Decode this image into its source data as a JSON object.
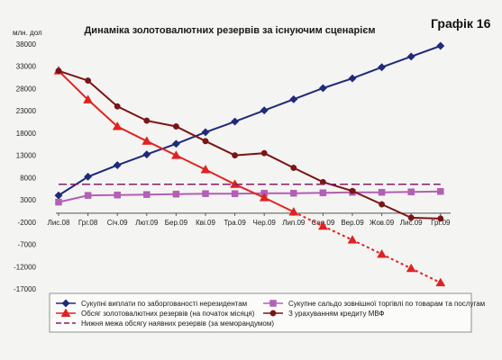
{
  "chart_data": {
    "type": "line",
    "title": "Динаміка золотовалютних резервів за існуючим сценарієм",
    "badge": "Графік 16",
    "ylabel": "млн. дол",
    "ylim": [
      -17000,
      38000
    ],
    "yticks": [
      -17000,
      -12000,
      -7000,
      -2000,
      3000,
      8000,
      13000,
      18000,
      23000,
      28000,
      33000,
      38000
    ],
    "ytick_labels": [
      "-17000",
      "-12000",
      "-7000",
      "-2000",
      "3000",
      "8000",
      "13000",
      "18000",
      "23000",
      "28000",
      "33000",
      "38000"
    ],
    "categories": [
      "Лис.08",
      "Грг.08",
      "Січ.09",
      "Лют.09",
      "Бер.09",
      "Кві.09",
      "Тра.09",
      "Чер.09",
      "Лип.09",
      "Сер.09",
      "Вер.09",
      "Жов.09",
      "Лис.09",
      "Грг.09"
    ],
    "grid": false,
    "legend_position": "bottom",
    "series": [
      {
        "name": "Сукупні виплати по заборгованості нерезидентам",
        "color": "#1f2a7a",
        "marker": "diamond",
        "values": [
          4000,
          8200,
          10800,
          13200,
          15600,
          18200,
          20600,
          23100,
          25600,
          28100,
          30300,
          32800,
          35200,
          37600
        ]
      },
      {
        "name": "Сукупне сальдо зовнішної торгівлі по товарам та послугам",
        "color": "#b25fb5",
        "marker": "square",
        "values": [
          2500,
          4000,
          4100,
          4200,
          4300,
          4400,
          4400,
          4500,
          4500,
          4600,
          4700,
          4700,
          4800,
          4900
        ]
      },
      {
        "name": "Обсяг золотовалютних резервів (на початок місяця)",
        "color": "#e02222",
        "marker": "triangle",
        "values": [
          32000,
          25500,
          19500,
          16200,
          13000,
          9800,
          6500,
          3500,
          300,
          -2900,
          -6000,
          -9200,
          -12400,
          -15600
        ],
        "dashed_from_index": 8
      },
      {
        "name": "З урахуванням кредиту МВФ",
        "color": "#7a1515",
        "marker": "circle",
        "values": [
          32000,
          29800,
          24000,
          20800,
          19500,
          16200,
          13000,
          13500,
          10200,
          7000,
          5000,
          2000,
          -1000,
          -1200
        ]
      },
      {
        "name": "Нижня межа обсягу наявних резервів (за меморандумом)",
        "color": "#8b1a6b",
        "marker": "none",
        "dashed": true,
        "values": [
          6500,
          6500,
          6500,
          6500,
          6500,
          6500,
          6500,
          6500,
          6500,
          6500,
          6500,
          6500,
          6500,
          6500
        ]
      }
    ]
  }
}
